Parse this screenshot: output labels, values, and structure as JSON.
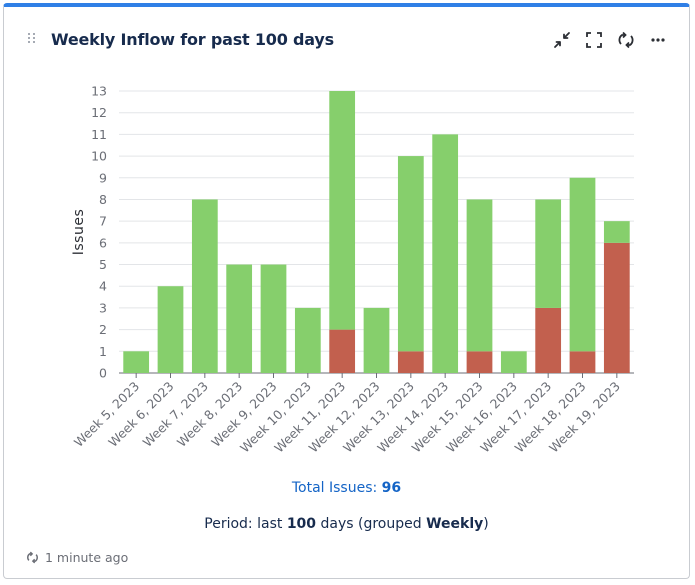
{
  "header": {
    "title": "Weekly Inflow for past 100 days"
  },
  "icons": {
    "drag": "drag-handle-icon",
    "collapse": "minimize-icon",
    "fullscreen": "fullscreen-icon",
    "refresh": "refresh-icon",
    "more": "more-icon"
  },
  "colors": {
    "accent": "#2f7fe6",
    "green": "#86cf6c",
    "red": "#c2604e",
    "link": "#1464c6"
  },
  "chart_data": {
    "type": "bar",
    "stacked": true,
    "ylabel": "Issues",
    "xlabel": "",
    "ylim": [
      0,
      13
    ],
    "yticks": [
      "0",
      "1",
      "2",
      "3",
      "4",
      "5",
      "6",
      "7",
      "8",
      "9",
      "10",
      "11",
      "12",
      "13"
    ],
    "categories": [
      "Week 5, 2023",
      "Week 6, 2023",
      "Week 7, 2023",
      "Week 8, 2023",
      "Week 9, 2023",
      "Week 10, 2023",
      "Week 11, 2023",
      "Week 12, 2023",
      "Week 13, 2023",
      "Week 14, 2023",
      "Week 15, 2023",
      "Week 16, 2023",
      "Week 17, 2023",
      "Week 18, 2023",
      "Week 19, 2023"
    ],
    "series": [
      {
        "name": "red",
        "color": "#c2604e",
        "values": [
          0,
          0,
          0,
          0,
          0,
          0,
          2,
          0,
          1,
          0,
          1,
          0,
          3,
          1,
          6
        ]
      },
      {
        "name": "green",
        "color": "#86cf6c",
        "values": [
          1,
          4,
          8,
          5,
          5,
          3,
          11,
          3,
          9,
          11,
          7,
          1,
          5,
          8,
          1
        ]
      }
    ],
    "grid": true
  },
  "summary": {
    "total_label": "Total Issues: ",
    "total_value": "96",
    "period_prefix": "Period: last ",
    "period_days": "100",
    "period_middle": " days (grouped ",
    "period_group": "Weekly",
    "period_suffix": ")"
  },
  "footer": {
    "updated": "1 minute ago"
  }
}
